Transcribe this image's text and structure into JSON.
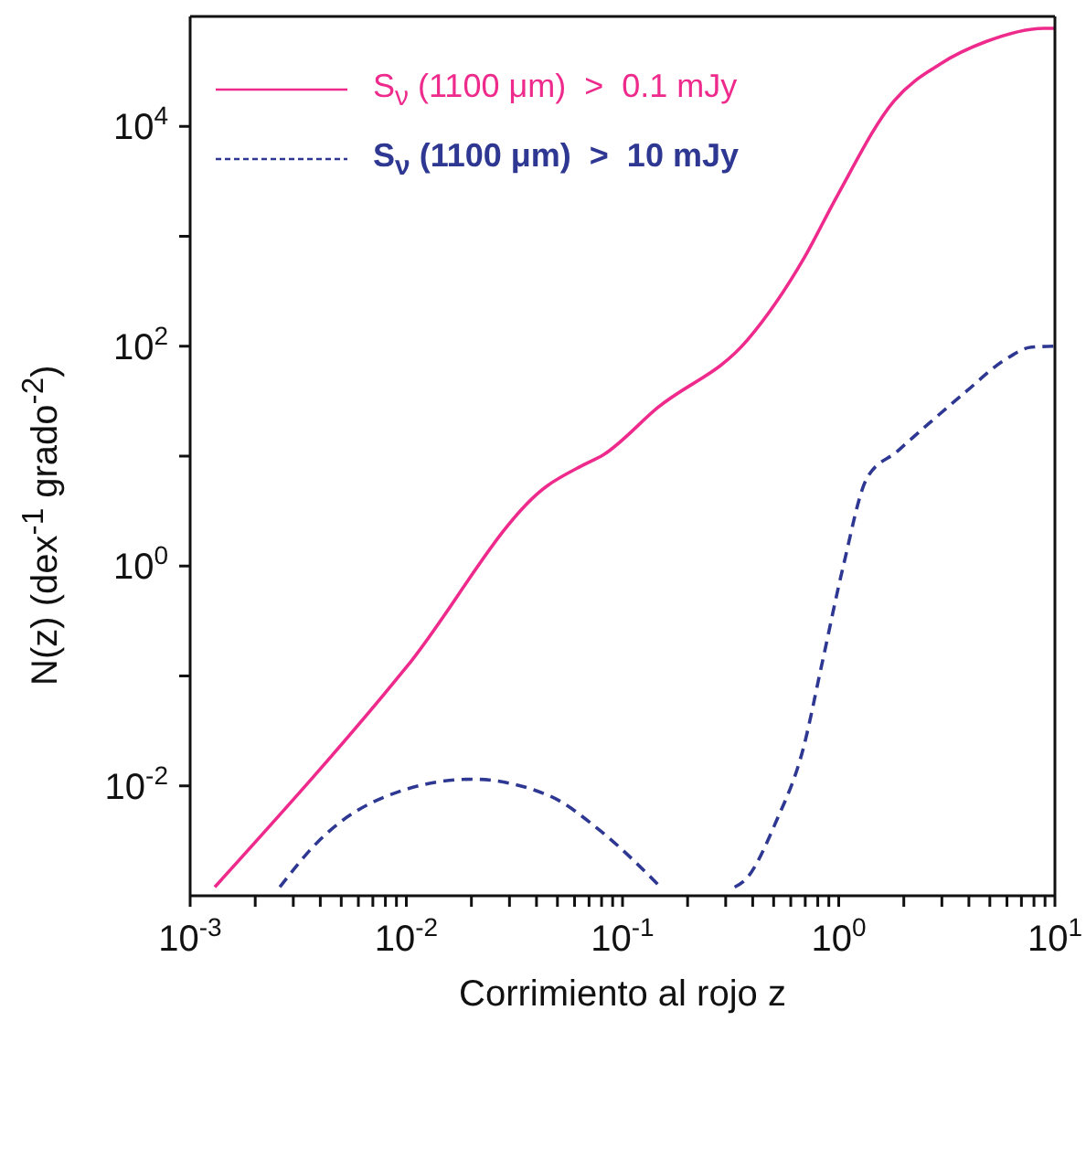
{
  "chart_data": {
    "type": "line",
    "xlabel": "Corrimiento al rojo z",
    "ylabel": "N(z) (dex$^{-1}$ grado$^{-2}$)",
    "log": "xy",
    "legend": "top left",
    "grid": false,
    "xlim": [
      0.001,
      10
    ],
    "ylim": [
      0.001,
      100000
    ],
    "xticks": [
      {
        "value": 0.001,
        "label": "10$^{-3}$"
      },
      {
        "value": 0.002,
        "label": null
      },
      {
        "value": 0.003,
        "label": null
      },
      {
        "value": 0.004,
        "label": null
      },
      {
        "value": 0.005,
        "label": null
      },
      {
        "value": 0.006,
        "label": null
      },
      {
        "value": 0.007,
        "label": null
      },
      {
        "value": 0.008,
        "label": null
      },
      {
        "value": 0.009,
        "label": null
      },
      {
        "value": 0.01,
        "label": "10$^{-2}$"
      },
      {
        "value": 0.02,
        "label": null
      },
      {
        "value": 0.03,
        "label": null
      },
      {
        "value": 0.04,
        "label": null
      },
      {
        "value": 0.05,
        "label": null
      },
      {
        "value": 0.06,
        "label": null
      },
      {
        "value": 0.07,
        "label": null
      },
      {
        "value": 0.08,
        "label": null
      },
      {
        "value": 0.09,
        "label": null
      },
      {
        "value": 0.1,
        "label": "10$^{-1}$"
      },
      {
        "value": 0.2,
        "label": null
      },
      {
        "value": 0.3,
        "label": null
      },
      {
        "value": 0.4,
        "label": null
      },
      {
        "value": 0.5,
        "label": null
      },
      {
        "value": 0.6,
        "label": null
      },
      {
        "value": 0.7,
        "label": null
      },
      {
        "value": 0.8,
        "label": null
      },
      {
        "value": 0.9,
        "label": null
      },
      {
        "value": 1,
        "label": "10$^{0}$"
      },
      {
        "value": 2,
        "label": null
      },
      {
        "value": 3,
        "label": null
      },
      {
        "value": 4,
        "label": null
      },
      {
        "value": 5,
        "label": null
      },
      {
        "value": 6,
        "label": null
      },
      {
        "value": 7,
        "label": null
      },
      {
        "value": 8,
        "label": null
      },
      {
        "value": 9,
        "label": null
      },
      {
        "value": 10,
        "label": "10$^{1}$"
      }
    ],
    "yticks": [
      {
        "value": 0.01,
        "label": "10$^{-2}$"
      },
      {
        "value": 0.1,
        "label": null
      },
      {
        "value": 1,
        "label": "10$^{0}$"
      },
      {
        "value": 10,
        "label": null
      },
      {
        "value": 100,
        "label": "10$^{2}$"
      },
      {
        "value": 1000,
        "label": null
      },
      {
        "value": 10000,
        "label": "10$^{4}$"
      }
    ],
    "series": [
      {
        "name": "S$_{ν}$ (1100 μm)  >  0.1 mJy",
        "color": "#ee2a8c",
        "line_style": "solid",
        "x": [
          0.0013,
          0.01,
          0.045,
          0.065,
          0.081,
          0.145,
          0.38,
          0.69,
          0.98,
          1.8,
          2.95,
          4.8,
          8.9,
          10
        ],
        "values": [
          0.0012,
          0.12,
          5.4,
          8.2,
          10.2,
          27.5,
          115,
          630,
          2300,
          17000,
          37000,
          59000,
          78000,
          78000
        ]
      },
      {
        "name": "S$_{ν}$ (1100 μm)  >  10 mJy",
        "color": "#2e3892",
        "line_style": "dashed",
        "x": [
          0.0026,
          0.0039,
          0.0071,
          0.02,
          0.046,
          0.079,
          0.15,
          0.24,
          0.33,
          0.37,
          0.51,
          0.69,
          0.83,
          1.05,
          1.35,
          1.86,
          3.9,
          5.8,
          7.8,
          10
        ],
        "values": [
          0.0012,
          0.0031,
          0.0072,
          0.0115,
          0.0081,
          0.0039,
          0.0012,
          null,
          0.0012,
          0.0014,
          0.0046,
          0.023,
          0.12,
          1.0,
          6.3,
          11,
          39,
          74,
          98,
          100
        ]
      }
    ]
  }
}
